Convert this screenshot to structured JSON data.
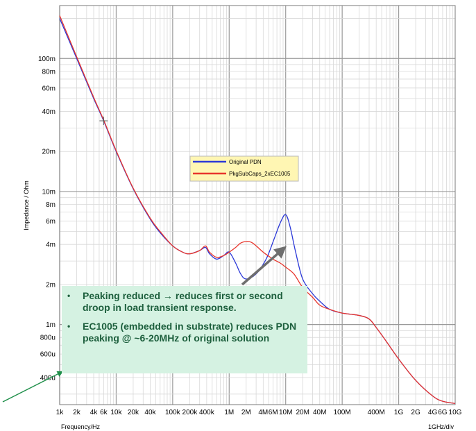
{
  "chart_data": {
    "type": "line",
    "xscale": "log",
    "yscale": "log",
    "xlabel": "Frequency/Hz",
    "ylabel": "Impedance / Ohm",
    "xdiv_label": "1GHz/div",
    "xlim": [
      1000,
      10000000000
    ],
    "ylim": [
      0.00025,
      0.25
    ],
    "grid": true,
    "legend_placement": "center",
    "x_ticks": [
      {
        "value": 1000,
        "label": "1k"
      },
      {
        "value": 2000,
        "label": "2k"
      },
      {
        "value": 4000,
        "label": "4k"
      },
      {
        "value": 6000,
        "label": "6k"
      },
      {
        "value": 10000,
        "label": "10k"
      },
      {
        "value": 20000,
        "label": "20k"
      },
      {
        "value": 40000,
        "label": "40k"
      },
      {
        "value": 100000,
        "label": "100k"
      },
      {
        "value": 200000,
        "label": "200k"
      },
      {
        "value": 400000,
        "label": "400k"
      },
      {
        "value": 1000000,
        "label": "1M"
      },
      {
        "value": 2000000,
        "label": "2M"
      },
      {
        "value": 4000000,
        "label": "4M"
      },
      {
        "value": 6000000,
        "label": "6M"
      },
      {
        "value": 10000000,
        "label": "10M"
      },
      {
        "value": 20000000,
        "label": "20M"
      },
      {
        "value": 40000000,
        "label": "40M"
      },
      {
        "value": 100000000,
        "label": "100M"
      },
      {
        "value": 400000000,
        "label": "400M"
      },
      {
        "value": 1000000000,
        "label": "1G"
      },
      {
        "value": 2000000000,
        "label": "2G"
      },
      {
        "value": 4000000000,
        "label": "4G"
      },
      {
        "value": 6000000000,
        "label": "6G"
      },
      {
        "value": 10000000000,
        "label": "10G"
      }
    ],
    "y_ticks": [
      {
        "value": 0.0004,
        "label": "400u"
      },
      {
        "value": 0.0006,
        "label": "600u"
      },
      {
        "value": 0.0008,
        "label": "800u"
      },
      {
        "value": 0.001,
        "label": "1m"
      },
      {
        "value": 0.002,
        "label": "2m"
      },
      {
        "value": 0.004,
        "label": "4m"
      },
      {
        "value": 0.006,
        "label": "6m"
      },
      {
        "value": 0.008,
        "label": "8m"
      },
      {
        "value": 0.01,
        "label": "10m"
      },
      {
        "value": 0.02,
        "label": "20m"
      },
      {
        "value": 0.04,
        "label": "40m"
      },
      {
        "value": 0.06,
        "label": "60m"
      },
      {
        "value": 0.08,
        "label": "80m"
      },
      {
        "value": 0.1,
        "label": "100m"
      }
    ],
    "series": [
      {
        "name": "Original PDN",
        "color": "#2c39d8",
        "points": [
          [
            1000,
            0.2
          ],
          [
            2000,
            0.1
          ],
          [
            4000,
            0.05
          ],
          [
            6000,
            0.034
          ],
          [
            10000,
            0.02
          ],
          [
            20000,
            0.0105
          ],
          [
            40000,
            0.0062
          ],
          [
            60000,
            0.0049
          ],
          [
            100000,
            0.0039
          ],
          [
            150000,
            0.0035
          ],
          [
            200000,
            0.0034
          ],
          [
            300000,
            0.0036
          ],
          [
            380000,
            0.0038
          ],
          [
            450000,
            0.0034
          ],
          [
            600000,
            0.0031
          ],
          [
            800000,
            0.0033
          ],
          [
            1000000,
            0.0035
          ],
          [
            1300000,
            0.0029
          ],
          [
            1600000,
            0.0024
          ],
          [
            2000000,
            0.0022
          ],
          [
            3000000,
            0.0024
          ],
          [
            4500000,
            0.0031
          ],
          [
            6000000,
            0.0042
          ],
          [
            8000000,
            0.0058
          ],
          [
            10000000,
            0.0067
          ],
          [
            12000000,
            0.0054
          ],
          [
            15000000,
            0.0035
          ],
          [
            20000000,
            0.0022
          ],
          [
            30000000,
            0.0017
          ],
          [
            40000000,
            0.0015
          ],
          [
            60000000,
            0.0013
          ],
          [
            100000000,
            0.00122
          ],
          [
            200000000,
            0.00117
          ],
          [
            300000000,
            0.0011
          ],
          [
            400000000,
            0.00095
          ],
          [
            600000000,
            0.00075
          ],
          [
            1000000000,
            0.00055
          ],
          [
            2000000000,
            0.00038
          ],
          [
            4000000000,
            0.00029
          ],
          [
            6000000000,
            0.000265
          ],
          [
            10000000000,
            0.000255
          ]
        ]
      },
      {
        "name": "PkgSubCaps_2xEC1005",
        "color": "#e8362d",
        "points": [
          [
            1000,
            0.21
          ],
          [
            2000,
            0.103
          ],
          [
            4000,
            0.051
          ],
          [
            6000,
            0.0345
          ],
          [
            10000,
            0.0203
          ],
          [
            20000,
            0.0106
          ],
          [
            40000,
            0.0063
          ],
          [
            60000,
            0.005
          ],
          [
            100000,
            0.0039
          ],
          [
            150000,
            0.0035
          ],
          [
            200000,
            0.0034
          ],
          [
            300000,
            0.0036
          ],
          [
            380000,
            0.0039
          ],
          [
            450000,
            0.0035
          ],
          [
            600000,
            0.0032
          ],
          [
            800000,
            0.0033
          ],
          [
            1000000,
            0.0035
          ],
          [
            1300000,
            0.0038
          ],
          [
            1600000,
            0.0041
          ],
          [
            2000000,
            0.0042
          ],
          [
            2600000,
            0.0041
          ],
          [
            4000000,
            0.0035
          ],
          [
            6000000,
            0.0031
          ],
          [
            8000000,
            0.0029
          ],
          [
            10000000,
            0.0027
          ],
          [
            14000000,
            0.0024
          ],
          [
            20000000,
            0.0019
          ],
          [
            30000000,
            0.0016
          ],
          [
            40000000,
            0.0014
          ],
          [
            60000000,
            0.0013
          ],
          [
            100000000,
            0.00122
          ],
          [
            200000000,
            0.00117
          ],
          [
            300000000,
            0.0011
          ],
          [
            400000000,
            0.00095
          ],
          [
            600000000,
            0.00075
          ],
          [
            1000000000,
            0.00055
          ],
          [
            2000000000,
            0.00038
          ],
          [
            4000000000,
            0.00029
          ],
          [
            6000000000,
            0.000265
          ],
          [
            10000000000,
            0.000255
          ]
        ]
      }
    ],
    "annotations": [
      "Peaking reduced → reduces first or second droop in load transient response.",
      "EC1005 (embedded in substrate) reduces PDN peaking @ ~6-20MHz of original solution"
    ]
  },
  "colors": {
    "grid_major": "#9a9a9a",
    "grid_minor": "#d8d8d8",
    "legend_bg": "#fff6b3",
    "callout_bg": "#d5f2e2",
    "callout_text": "#1d5f3d",
    "arrow_gray": "#6e6e6e",
    "arrow_green": "#1f8f4a"
  }
}
